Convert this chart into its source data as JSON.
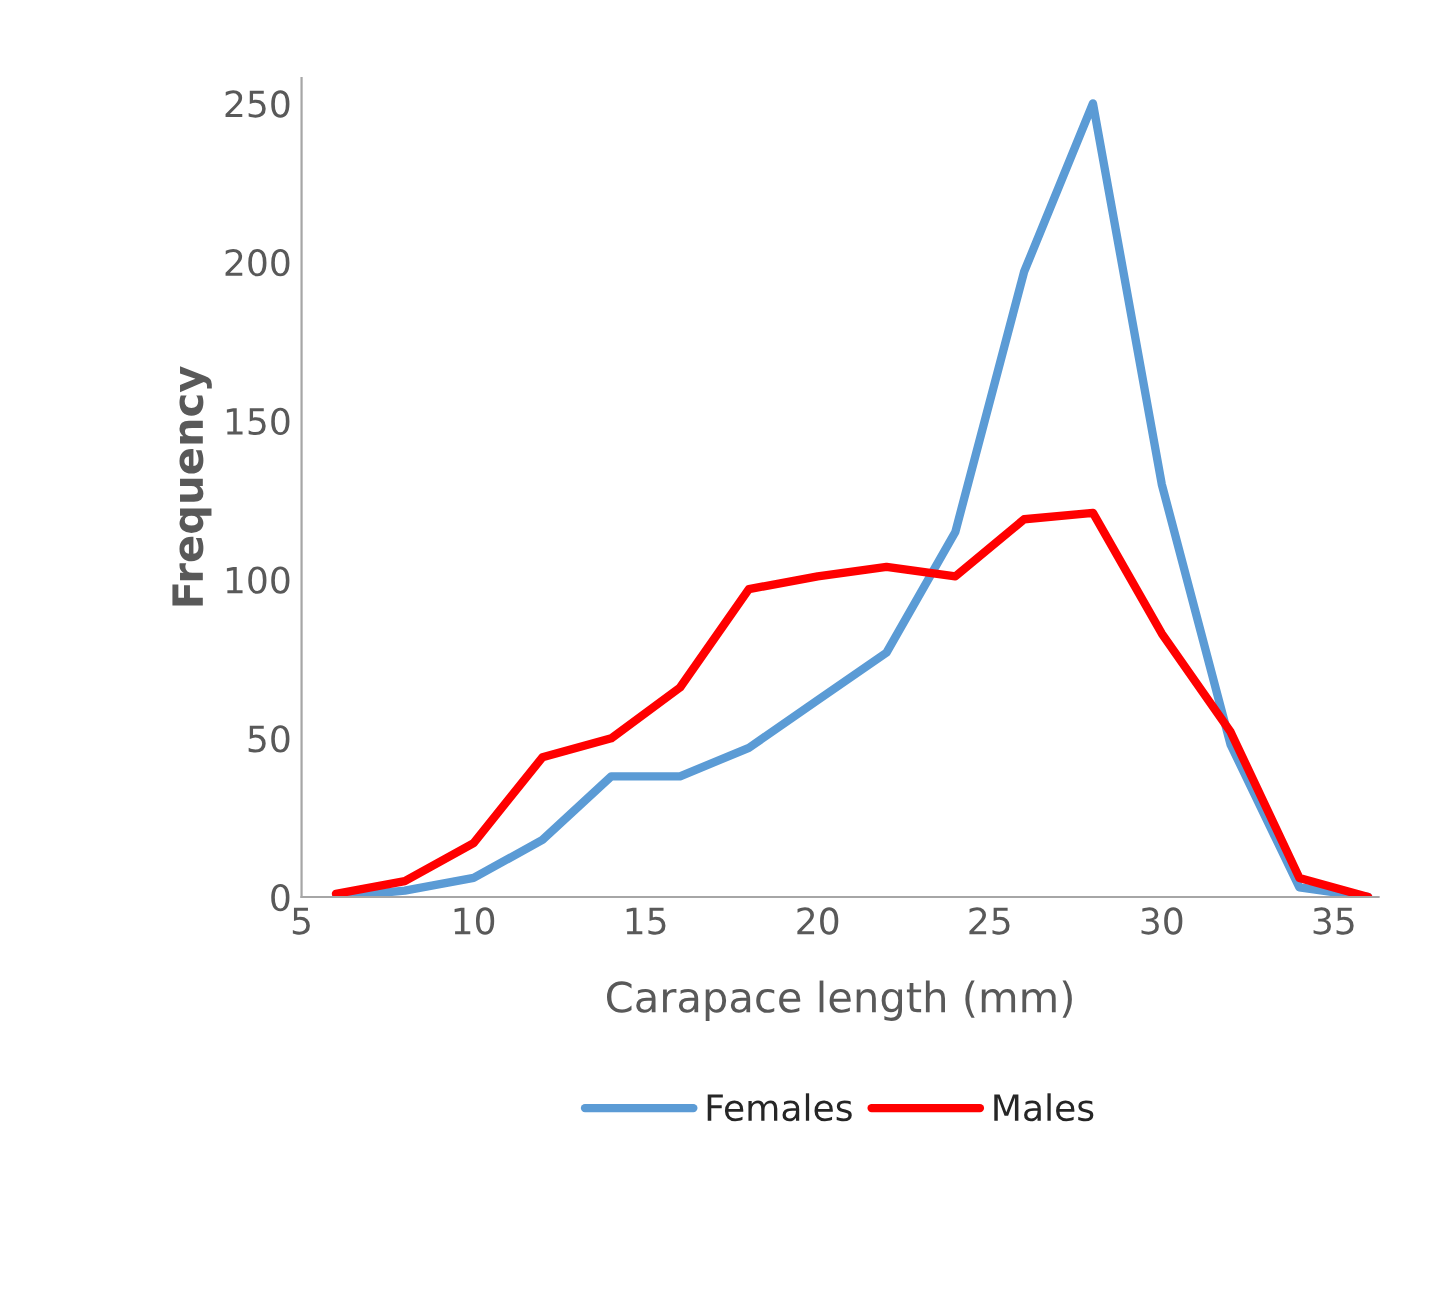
{
  "chart_data": {
    "type": "line",
    "xlabel": "Carapace length (mm)",
    "ylabel": "Frequency",
    "x": [
      6,
      8,
      10,
      12,
      14,
      16,
      18,
      20,
      22,
      24,
      26,
      28,
      30,
      32,
      34,
      36
    ],
    "series": [
      {
        "name": "Females",
        "color": "#5b9bd5",
        "values": [
          0,
          2,
          6,
          18,
          38,
          38,
          47,
          62,
          77,
          115,
          197,
          250,
          130,
          48,
          3,
          0
        ]
      },
      {
        "name": "Males",
        "color": "#ff0000",
        "values": [
          1,
          5,
          17,
          44,
          50,
          66,
          97,
          101,
          104,
          101,
          119,
          121,
          83,
          52,
          6,
          0
        ]
      }
    ],
    "xlim": [
      5,
      36.3
    ],
    "ylim": [
      0,
      258
    ],
    "xticks": [
      5,
      10,
      15,
      20,
      25,
      30,
      35
    ],
    "yticks": [
      0,
      50,
      100,
      150,
      200,
      250
    ],
    "grid": false,
    "legend": "bottom",
    "marker": "none",
    "line_style": "solid"
  }
}
